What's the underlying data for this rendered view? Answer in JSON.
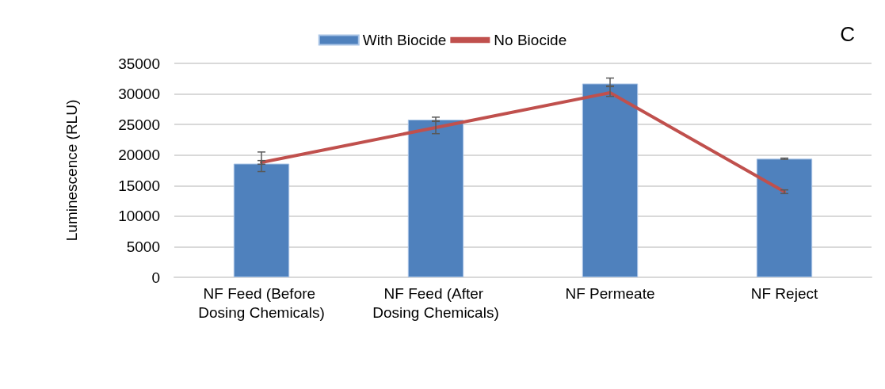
{
  "chart_data": {
    "type": "bar",
    "ylabel": "Luminescence (RLU)",
    "annotations": [
      "C"
    ],
    "categories": [
      "NF Feed (Before Dosing Chemicals)",
      "NF Feed (After Dosing Chemicals)",
      "NF Permeate",
      "NF Reject"
    ],
    "series": [
      {
        "name": "With Biocide",
        "color": "#4f81bd",
        "values": [
          18600,
          25800,
          31700,
          19400
        ],
        "errors": [
          [
            17300,
            20500
          ],
          [
            25500,
            26200
          ],
          [
            31300,
            32600
          ],
          [
            19300,
            19500
          ]
        ]
      },
      {
        "name": "No Biocide",
        "type": "line",
        "color": "#c0504d",
        "values": [
          18800,
          24500,
          30200,
          14000
        ],
        "errors": [
          [
            18500,
            19100
          ],
          [
            23500,
            25600
          ],
          [
            29600,
            31200
          ],
          [
            13700,
            14300
          ]
        ]
      }
    ],
    "ylim": [
      0,
      35000
    ],
    "yticks": [
      0,
      5000,
      10000,
      15000,
      20000,
      25000,
      30000,
      35000
    ],
    "grid": "y",
    "legend": "top",
    "marker": "none",
    "line_style": "solid"
  }
}
